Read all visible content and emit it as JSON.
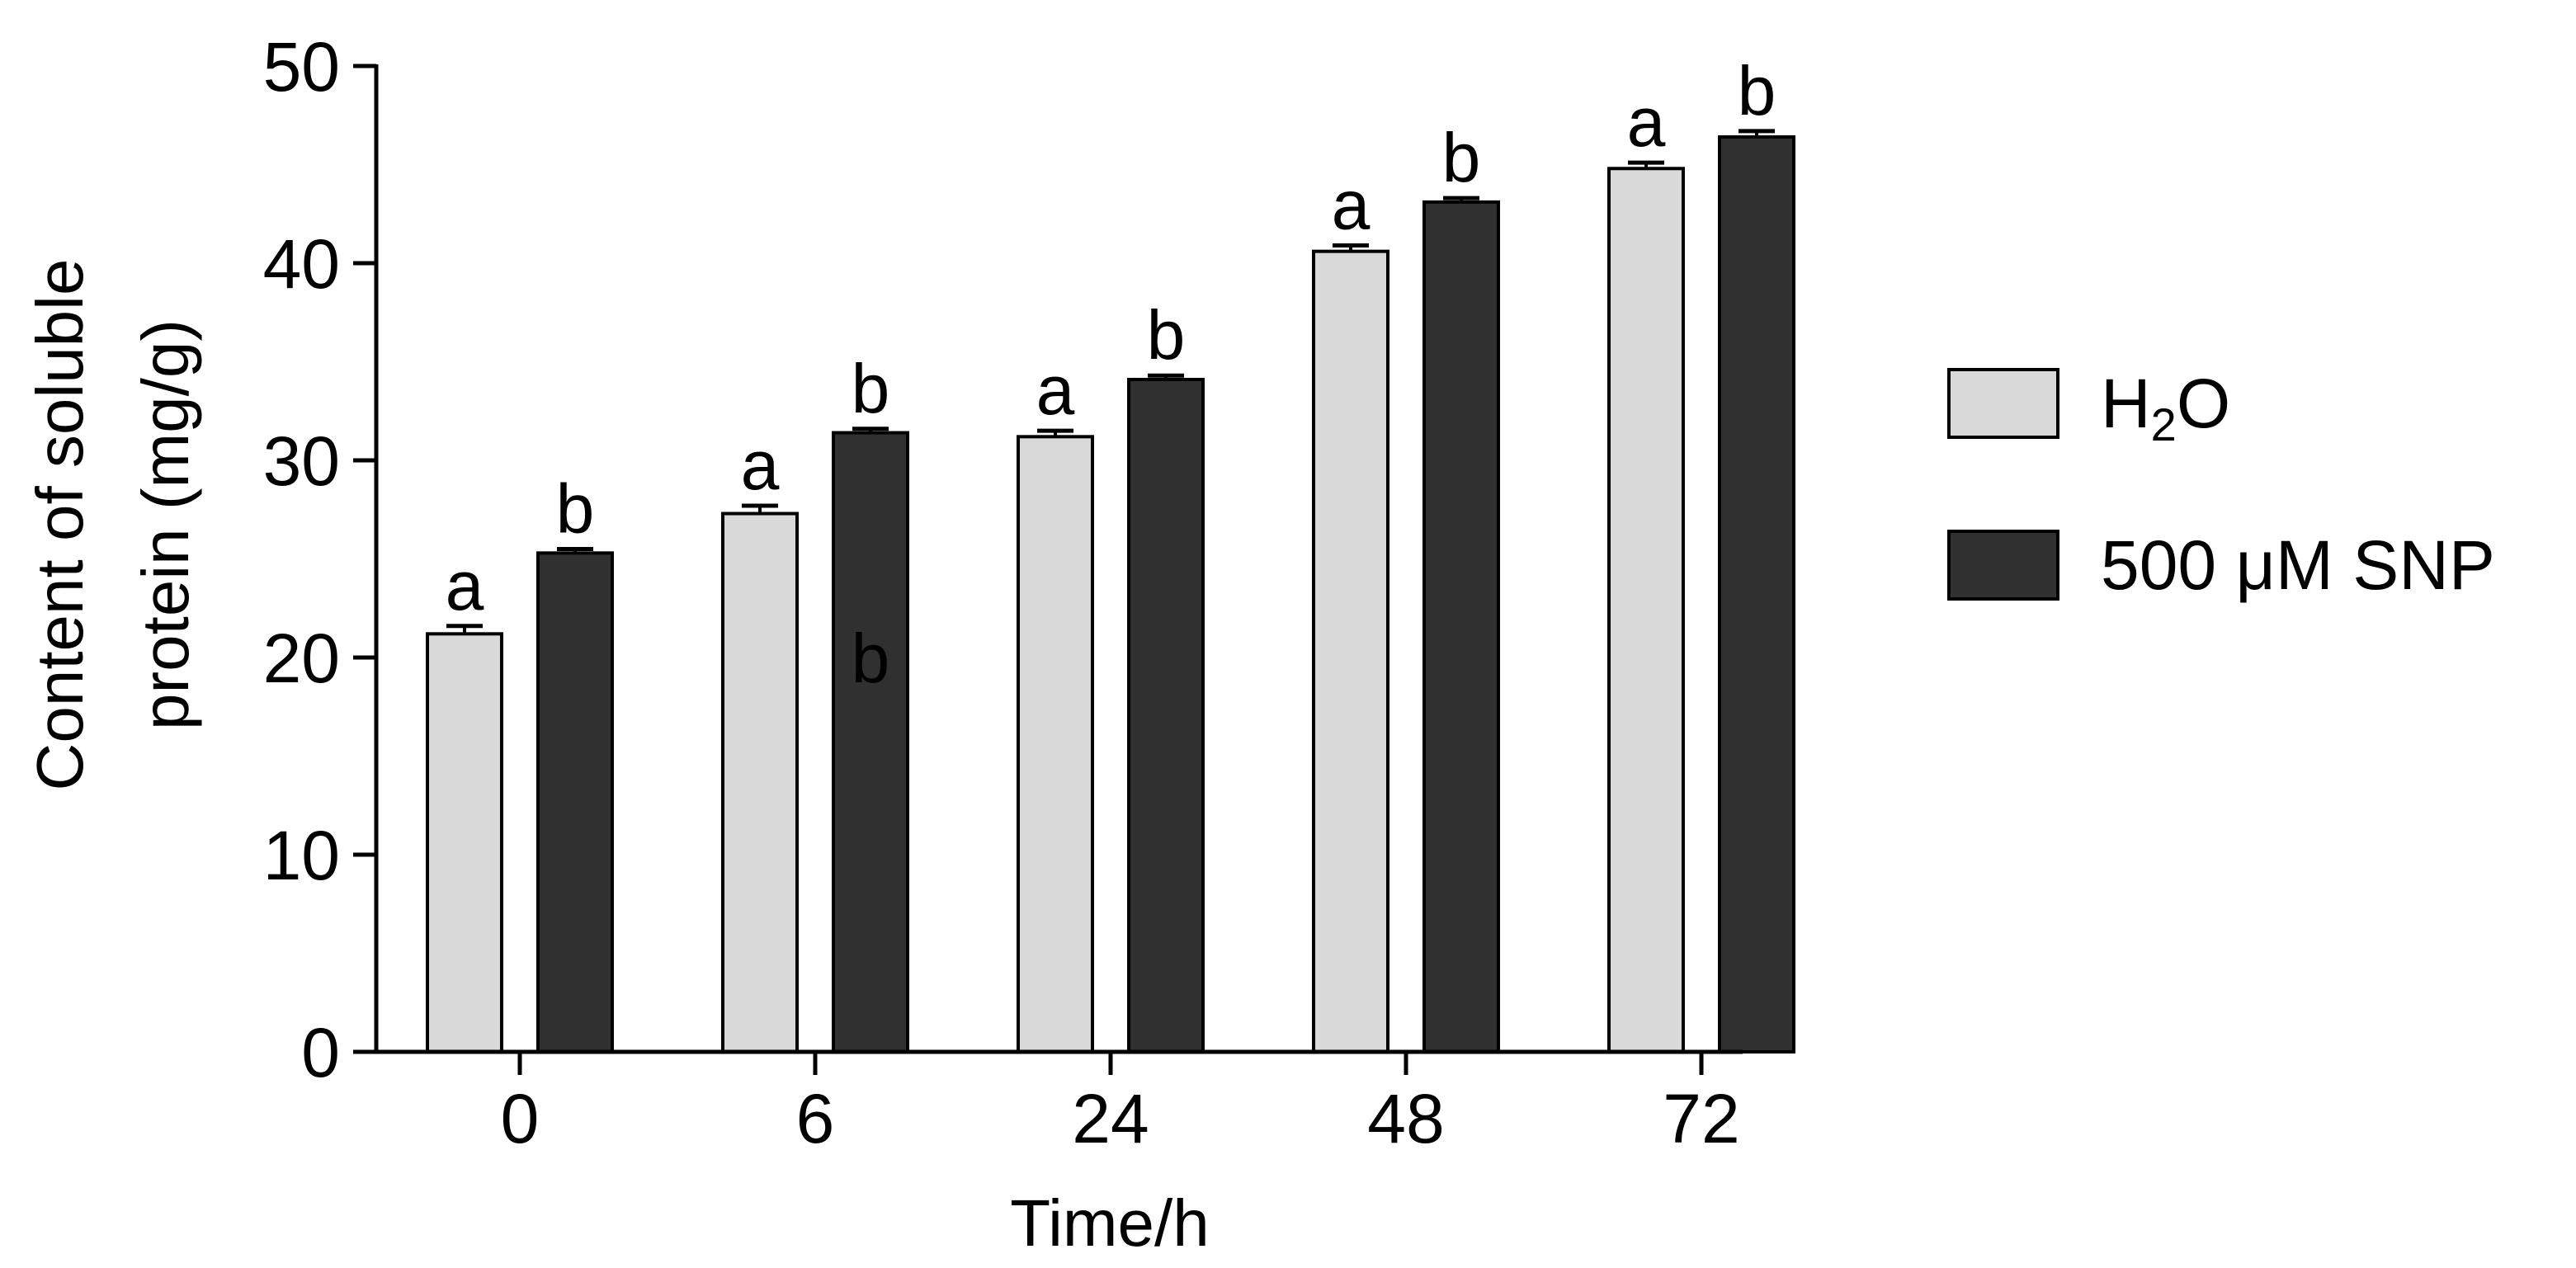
{
  "chart_data": {
    "type": "bar",
    "title": "",
    "xlabel": "Time/h",
    "ylabel_line1": "Content of soluble",
    "ylabel_line2": "protein (mg/g)",
    "categories": [
      "0",
      "6",
      "24",
      "48",
      "72"
    ],
    "ylim": [
      0,
      50
    ],
    "yticks": [
      "0",
      "10",
      "20",
      "30",
      "40",
      "50"
    ],
    "grid": false,
    "legend_position": "right",
    "series": [
      {
        "name": "H2O",
        "legend_label": {
          "main": "H",
          "sub": "2",
          "tail": "O"
        },
        "color": "#d9d9d9",
        "values": [
          21.2,
          27.3,
          31.2,
          40.6,
          44.8
        ],
        "errors": [
          0.4,
          0.4,
          0.3,
          0.3,
          0.3
        ],
        "sig_labels": [
          "a",
          "a",
          "a",
          "a",
          "a"
        ]
      },
      {
        "name": "500 μM SNP",
        "color": "#303030",
        "values": [
          25.3,
          31.4,
          34.1,
          43.1,
          46.4
        ],
        "errors": [
          0.2,
          0.2,
          0.2,
          0.2,
          0.3
        ],
        "sig_labels": [
          "b",
          "b",
          "b",
          "b",
          "b"
        ]
      }
    ],
    "annotations": [
      {
        "text": "b",
        "category": "6",
        "series": "500 μM SNP",
        "y": 20
      }
    ]
  }
}
